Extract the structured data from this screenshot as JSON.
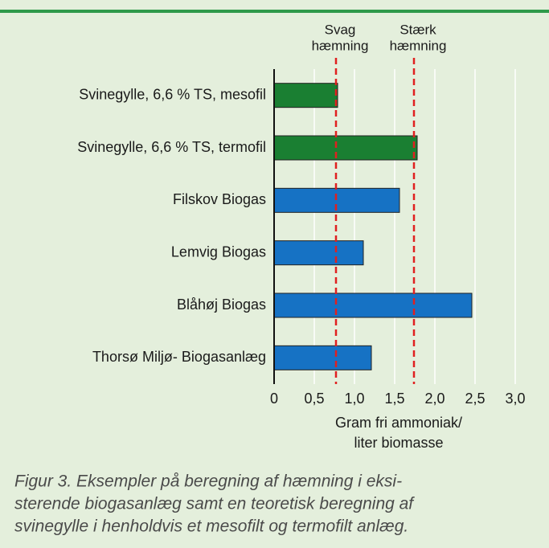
{
  "chart_data": {
    "type": "barh",
    "categories": [
      "Svinegylle, 6,6 % TS, mesofil",
      "Svinegylle, 6,6 % TS, termofil",
      "Filskov Biogas",
      "Lemvig Biogas",
      "Blåhøj Biogas",
      "Thorsø Miljø- Biogasanlæg"
    ],
    "values": [
      0.79,
      1.78,
      1.56,
      1.11,
      2.46,
      1.21
    ],
    "colors": [
      "#1a7f32",
      "#1a7f32",
      "#1672c4",
      "#1672c4",
      "#1672c4",
      "#1672c4"
    ],
    "xlim": [
      0,
      3.1
    ],
    "xticks": [
      0,
      {
        "value": 0.5,
        "label": "0,5"
      },
      {
        "value": 1.0,
        "label": "1,0"
      },
      {
        "value": 1.5,
        "label": "1,5"
      },
      {
        "value": 2.0,
        "label": "2,0"
      },
      {
        "value": 2.5,
        "label": "2,5"
      },
      {
        "value": 3.0,
        "label": "3,0"
      }
    ],
    "grid": true,
    "xlabel": [
      "Gram fri ammoniak/",
      "liter biomasse"
    ],
    "reference_lines": [
      {
        "value": 0.77,
        "label": [
          "Svag",
          "hæmning"
        ],
        "color": "#e02020"
      },
      {
        "value": 1.74,
        "label": [
          "Stærk",
          "hæmning"
        ],
        "color": "#e02020"
      }
    ],
    "caption": [
      "Figur 3. Eksempler på beregning af hæmning i eksi-",
      "sterende biogasanlæg samt en teoretisk beregning af",
      "svinegylle i henholdvis et mesofilt og termofilt anlæg."
    ]
  }
}
